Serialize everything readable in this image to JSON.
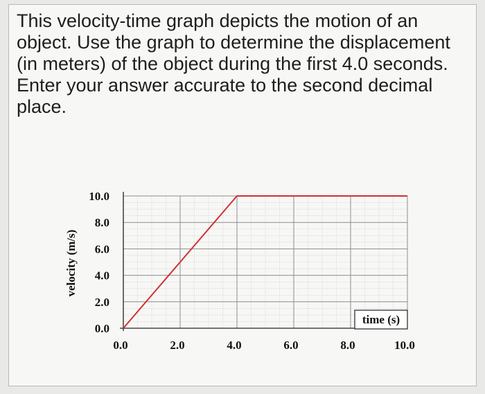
{
  "question": {
    "text": "This velocity-time graph depicts the motion of an object. Use the graph to determine the displacement (in meters) of the object during the first 4.0 seconds. Enter your answer accurate to the second decimal place."
  },
  "chart_data": {
    "type": "line",
    "title": "",
    "xlabel": "time (s)",
    "ylabel": "velocity (m/s)",
    "xlim": [
      0,
      10
    ],
    "ylim": [
      0,
      10
    ],
    "x_ticks": [
      "0.0",
      "2.0",
      "4.0",
      "6.0",
      "8.0",
      "10.0"
    ],
    "y_ticks": [
      "0.0",
      "2.0",
      "4.0",
      "6.0",
      "8.0",
      "10.0"
    ],
    "grid": true,
    "series": [
      {
        "x": [
          0.0,
          4.0,
          10.0
        ],
        "y": [
          0.0,
          10.0,
          10.0
        ],
        "color": "#cc3333"
      }
    ]
  }
}
